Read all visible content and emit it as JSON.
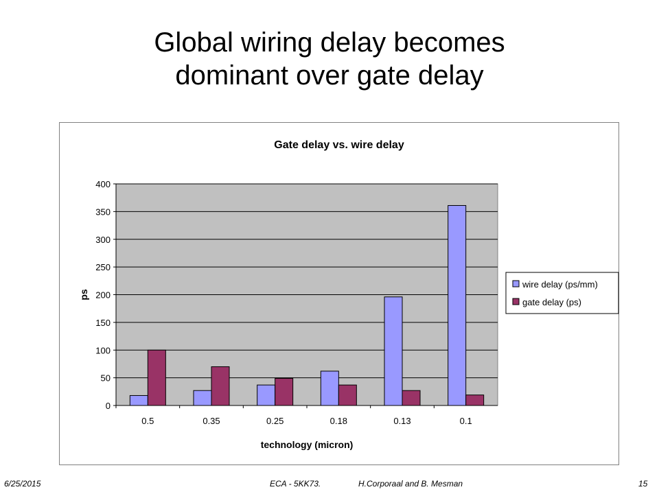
{
  "slide": {
    "title_line1": "Global wiring delay becomes",
    "title_line2": "dominant over gate delay"
  },
  "footer": {
    "date": "6/25/2015",
    "course": "ECA - 5KK73.",
    "authors": "H.Corporaal  and B. Mesman",
    "page": "15"
  },
  "chart_data": {
    "type": "bar",
    "title": "Gate delay vs. wire delay",
    "xlabel": "technology (micron)",
    "ylabel": "ps",
    "categories": [
      "0.5",
      "0.35",
      "0.25",
      "0.18",
      "0.13",
      "0.1"
    ],
    "series": [
      {
        "name": "wire delay (ps/mm)",
        "values": [
          18,
          27,
          37,
          62,
          196,
          361
        ],
        "color": "#9999ff"
      },
      {
        "name": "gate delay (ps)",
        "values": [
          100,
          70,
          49,
          37,
          27,
          19
        ],
        "color": "#993366"
      }
    ],
    "ylim": [
      0,
      400
    ],
    "yticks": [
      "0",
      "50",
      "100",
      "150",
      "200",
      "250",
      "300",
      "350",
      "400"
    ],
    "plot_background": "#c0c0c0",
    "grid": true,
    "legend_position": "right"
  }
}
